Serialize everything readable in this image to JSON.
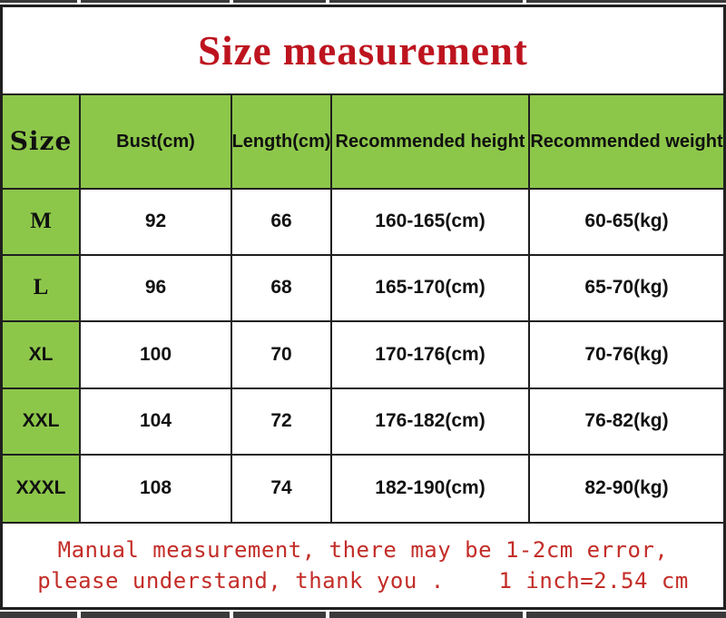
{
  "title": "Size measurement",
  "table": {
    "headers": {
      "size": "Size",
      "bust": "Bust(cm)",
      "length": "Length(cm)",
      "height": "Recommended height",
      "weight": "Recommended weight"
    },
    "rows": [
      {
        "size": "M",
        "bust": "92",
        "length": "66",
        "height": "160-165(cm)",
        "weight": "60-65(kg)"
      },
      {
        "size": "L",
        "bust": "96",
        "length": "68",
        "height": "165-170(cm)",
        "weight": "65-70(kg)"
      },
      {
        "size": "XL",
        "bust": "100",
        "length": "70",
        "height": "170-176(cm)",
        "weight": "70-76(kg)"
      },
      {
        "size": "XXL",
        "bust": "104",
        "length": "72",
        "height": "176-182(cm)",
        "weight": "76-82(kg)"
      },
      {
        "size": "XXXL",
        "bust": "108",
        "length": "74",
        "height": "182-190(cm)",
        "weight": "82-90(kg)"
      }
    ]
  },
  "footer": {
    "line1": "Manual measurement, there may be 1-2cm error,",
    "line2": "please understand, thank you .    1 inch=2.54 cm"
  },
  "colors": {
    "header_green": "#8dc74a",
    "title_red": "#bd141f",
    "footer_red": "#c32d28",
    "border": "#1f1f1f"
  }
}
